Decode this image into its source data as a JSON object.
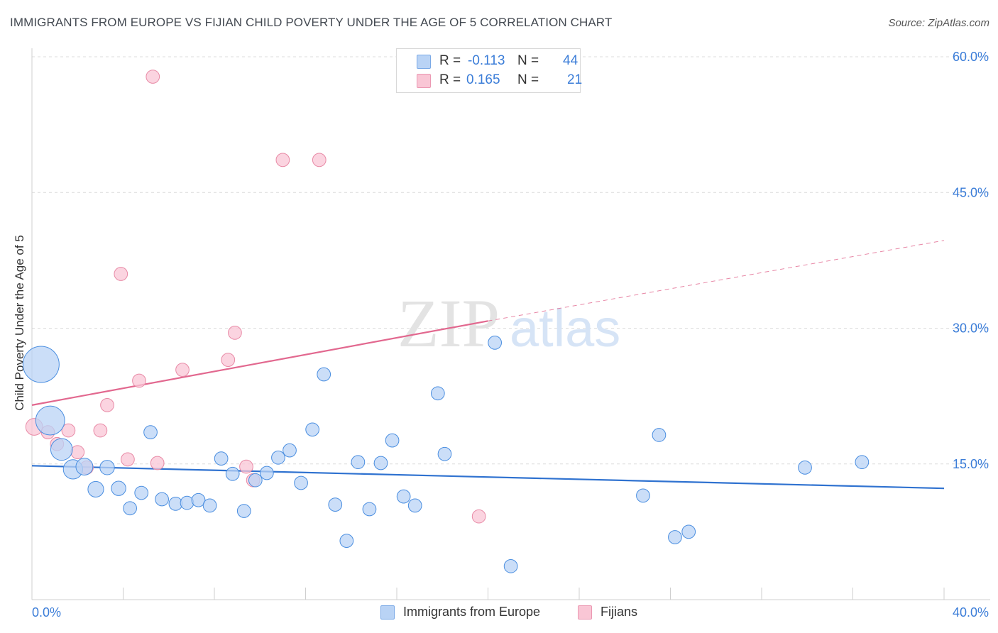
{
  "title": "IMMIGRANTS FROM EUROPE VS FIJIAN CHILD POVERTY UNDER THE AGE OF 5 CORRELATION CHART",
  "source": "Source: ZipAtlas.com",
  "watermark": {
    "zip": "ZIP",
    "atlas": "atlas"
  },
  "legend": {
    "rows": [
      {
        "r_label": "R =",
        "r_value": "-0.113",
        "n_label": "N =",
        "n_value": "44",
        "color": "#b9d3f5"
      },
      {
        "r_label": "R =",
        "r_value": "0.165",
        "n_label": "N =",
        "n_value": "21",
        "color": "#f9c6d5"
      }
    ]
  },
  "bottom_legend": [
    {
      "label": "Immigrants from Europe",
      "color": "#b9d3f5"
    },
    {
      "label": "Fijians",
      "color": "#f9c6d5"
    }
  ],
  "chart_data": {
    "type": "scatter",
    "ylabel": "Child Poverty Under the Age of 5",
    "xlim": [
      0,
      40
    ],
    "ylim": [
      0,
      60
    ],
    "x_tick_labels": [
      "0.0%",
      "40.0%"
    ],
    "y_tick_labels": [
      "15.0%",
      "30.0%",
      "45.0%",
      "60.0%"
    ],
    "y_ticks": [
      15,
      30,
      45,
      60
    ],
    "grid": "horizontal dashed",
    "series": [
      {
        "name": "Immigrants from Europe",
        "color": "#4a8ee0",
        "fill": "#b9d3f5",
        "trend": {
          "x": [
            0,
            40
          ],
          "y": [
            14.8,
            12.3
          ],
          "color": "#2f72d0"
        },
        "points": [
          [
            0.4,
            26.0,
            3
          ],
          [
            0.8,
            19.8,
            2.4
          ],
          [
            1.3,
            16.6,
            1.8
          ],
          [
            1.8,
            14.4,
            1.6
          ],
          [
            2.3,
            14.7,
            1.4
          ],
          [
            2.8,
            12.2,
            1.3
          ],
          [
            3.3,
            14.6,
            1.2
          ],
          [
            3.8,
            12.3,
            1.2
          ],
          [
            4.3,
            10.1,
            1.1
          ],
          [
            4.8,
            11.8,
            1.1
          ],
          [
            5.2,
            18.5,
            1.1
          ],
          [
            5.7,
            11.1,
            1.1
          ],
          [
            6.3,
            10.6,
            1.1
          ],
          [
            6.8,
            10.7,
            1.1
          ],
          [
            7.3,
            11.0,
            1.1
          ],
          [
            7.8,
            10.4,
            1.1
          ],
          [
            8.3,
            15.6,
            1.1
          ],
          [
            8.8,
            13.9,
            1.1
          ],
          [
            9.3,
            9.8,
            1.1
          ],
          [
            9.8,
            13.2,
            1.1
          ],
          [
            10.3,
            14.0,
            1.1
          ],
          [
            10.8,
            15.7,
            1.1
          ],
          [
            11.3,
            16.5,
            1.1
          ],
          [
            11.8,
            12.9,
            1.1
          ],
          [
            12.3,
            18.8,
            1.1
          ],
          [
            12.8,
            24.9,
            1.1
          ],
          [
            13.3,
            10.5,
            1.1
          ],
          [
            13.8,
            6.5,
            1.1
          ],
          [
            14.3,
            15.2,
            1.1
          ],
          [
            14.8,
            10.0,
            1.1
          ],
          [
            15.3,
            15.1,
            1.1
          ],
          [
            15.8,
            17.6,
            1.1
          ],
          [
            16.3,
            11.4,
            1.1
          ],
          [
            16.8,
            10.4,
            1.1
          ],
          [
            17.8,
            22.8,
            1.1
          ],
          [
            18.1,
            16.1,
            1.1
          ],
          [
            20.3,
            28.4,
            1.1
          ],
          [
            21.0,
            3.7,
            1.1
          ],
          [
            26.8,
            11.5,
            1.1
          ],
          [
            27.5,
            18.2,
            1.1
          ],
          [
            28.2,
            6.9,
            1.1
          ],
          [
            28.8,
            7.5,
            1.1
          ],
          [
            33.9,
            14.6,
            1.1
          ],
          [
            36.4,
            15.2,
            1.1
          ]
        ]
      },
      {
        "name": "Fijians",
        "color": "#e88aa6",
        "fill": "#f9c6d5",
        "trend": {
          "x": [
            0,
            20
          ],
          "y": [
            21.5,
            30.8
          ],
          "color": "#e2688f",
          "extrapolated_to": [
            40,
            39.7
          ]
        },
        "points": [
          [
            0.1,
            19.1,
            1.4
          ],
          [
            0.7,
            18.5,
            1.1
          ],
          [
            1.1,
            17.2,
            1.1
          ],
          [
            1.6,
            18.7,
            1.1
          ],
          [
            2.0,
            16.3,
            1.1
          ],
          [
            2.4,
            14.6,
            1.1
          ],
          [
            3.0,
            18.7,
            1.1
          ],
          [
            3.3,
            21.5,
            1.1
          ],
          [
            3.9,
            36.0,
            1.1
          ],
          [
            4.2,
            15.5,
            1.1
          ],
          [
            4.7,
            24.2,
            1.1
          ],
          [
            5.3,
            57.8,
            1.1
          ],
          [
            5.5,
            15.1,
            1.1
          ],
          [
            6.6,
            25.4,
            1.1
          ],
          [
            8.6,
            26.5,
            1.1
          ],
          [
            8.9,
            29.5,
            1.1
          ],
          [
            9.4,
            14.7,
            1.1
          ],
          [
            9.7,
            13.2,
            1.1
          ],
          [
            11.0,
            48.6,
            1.1
          ],
          [
            12.6,
            48.6,
            1.1
          ],
          [
            19.6,
            9.2,
            1.1
          ]
        ]
      }
    ]
  }
}
